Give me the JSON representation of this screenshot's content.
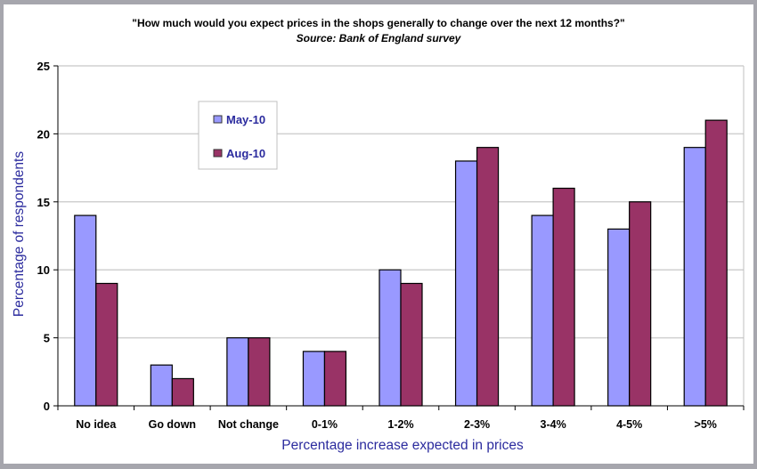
{
  "chart_data": {
    "type": "bar",
    "title": "\"How much would you expect prices in the shops generally to change over the next 12 months?\"",
    "subtitle": "Source: Bank of England survey",
    "xlabel": "Percentage increase expected in prices",
    "ylabel": "Percentage of respondents",
    "categories": [
      "No idea",
      "Go down",
      "Not change",
      "0-1%",
      "1-2%",
      "2-3%",
      "3-4%",
      "4-5%",
      ">5%"
    ],
    "series": [
      {
        "name": "May-10",
        "color": "#9999ff",
        "values": [
          14,
          3,
          5,
          4,
          10,
          18,
          14,
          13,
          19
        ]
      },
      {
        "name": "Aug-10",
        "color": "#993366",
        "values": [
          9,
          2,
          5,
          4,
          9,
          19,
          16,
          15,
          21
        ]
      }
    ],
    "ylim": [
      0,
      25
    ],
    "yticks": [
      0,
      5,
      10,
      15,
      20,
      25
    ],
    "grid": true,
    "legend_position": "top-left"
  }
}
